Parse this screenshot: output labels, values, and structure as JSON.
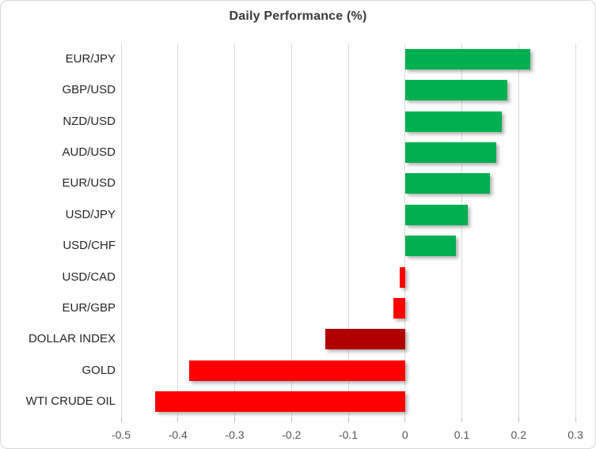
{
  "chart": {
    "title": "Daily Performance (%)"
  },
  "chart_data": {
    "type": "bar",
    "orientation": "horizontal",
    "title": "Daily Performance (%)",
    "categories": [
      "EUR/JPY",
      "GBP/USD",
      "NZD/USD",
      "AUD/USD",
      "EUR/USD",
      "USD/JPY",
      "USD/CHF",
      "USD/CAD",
      "EUR/GBP",
      "DOLLAR INDEX",
      "GOLD",
      "WTI CRUDE OIL"
    ],
    "values": [
      0.22,
      0.18,
      0.17,
      0.16,
      0.15,
      0.11,
      0.09,
      -0.01,
      -0.02,
      -0.14,
      -0.38,
      -0.44
    ],
    "bar_colors": [
      "#00B050",
      "#00B050",
      "#00B050",
      "#00B050",
      "#00B050",
      "#00B050",
      "#00B050",
      "#FF0000",
      "#FF0000",
      "#B00000",
      "#FF0000",
      "#FF0000"
    ],
    "xlabel": "",
    "ylabel": "",
    "xlim": [
      -0.5,
      0.3
    ],
    "xticks": [
      -0.5,
      -0.4,
      -0.3,
      -0.2,
      -0.1,
      0,
      0.1,
      0.2,
      0.3
    ],
    "xtick_labels": [
      "-0.5",
      "-0.4",
      "-0.3",
      "-0.2",
      "-0.1",
      "0",
      "0.1",
      "0.2",
      "0.3"
    ],
    "grid": true,
    "legend": "none",
    "colors": {
      "positive": "#00B050",
      "negative": "#FF0000",
      "dollar_index_negative": "#B00000",
      "gridline": "#d9d9d9",
      "title_text": "#3b3b3b",
      "axis_text": "#555555",
      "category_text": "#262626"
    }
  }
}
